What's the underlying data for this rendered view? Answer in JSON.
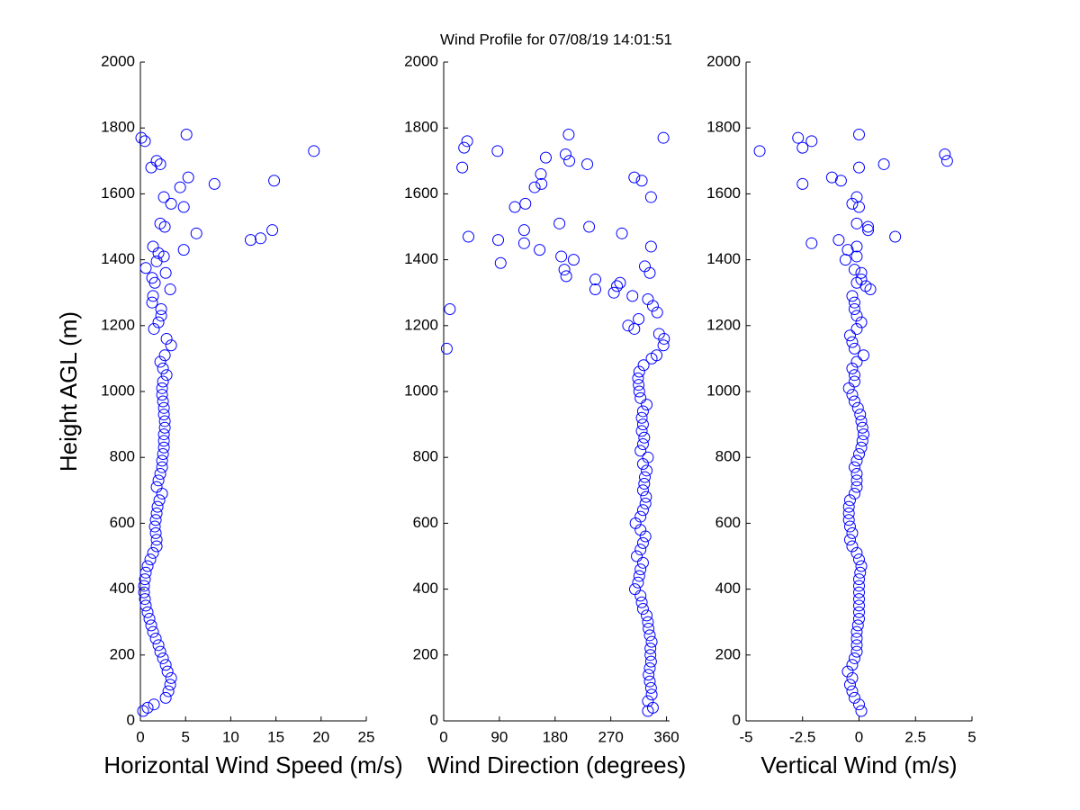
{
  "title": "Wind Profile for  07/08/19 14:01:51",
  "chart_data": [
    {
      "type": "scatter",
      "xlabel": "Horizontal Wind Speed (m/s)",
      "ylabel": "Height AGL (m)",
      "color": "#0000ff",
      "xlim": [
        0,
        25
      ],
      "xticks": [
        0,
        5,
        10,
        15,
        20,
        25
      ],
      "ylim": [
        0,
        2000
      ],
      "yticks": [
        0,
        200,
        400,
        600,
        800,
        1000,
        1200,
        1400,
        1600,
        1800,
        2000
      ],
      "x": [
        0.3,
        0.8,
        1.5,
        2.8,
        3.1,
        3.3,
        3.4,
        3.0,
        2.8,
        2.5,
        2.2,
        2.0,
        1.7,
        1.4,
        1.2,
        1.0,
        0.8,
        0.6,
        0.5,
        0.4,
        0.4,
        0.5,
        0.6,
        0.8,
        1.1,
        1.4,
        1.8,
        1.8,
        1.7,
        1.6,
        1.7,
        1.8,
        1.9,
        2.1,
        2.4,
        1.8,
        2.0,
        2.2,
        2.4,
        2.4,
        2.5,
        2.6,
        2.6,
        2.6,
        2.7,
        2.7,
        2.6,
        2.6,
        2.5,
        2.4,
        2.4,
        2.5,
        2.9,
        2.5,
        2.2,
        2.7,
        3.4,
        2.9,
        1.5,
        2.0,
        2.3,
        2.3,
        1.3,
        1.4,
        3.3,
        1.6,
        1.3,
        2.8,
        0.6,
        1.8,
        2.6,
        2.0,
        4.8,
        1.4,
        12.2,
        13.3,
        6.2,
        14.6,
        2.7,
        2.2,
        4.8,
        3.4,
        2.6,
        4.4,
        8.2,
        14.8,
        5.3,
        1.2,
        2.2,
        1.8,
        19.2,
        0.5,
        0.1,
        5.1
      ],
      "y": [
        30,
        40,
        50,
        70,
        90,
        110,
        130,
        150,
        170,
        190,
        210,
        230,
        250,
        270,
        290,
        310,
        330,
        350,
        370,
        390,
        410,
        430,
        450,
        470,
        490,
        510,
        530,
        550,
        570,
        590,
        610,
        630,
        650,
        670,
        690,
        710,
        730,
        750,
        770,
        790,
        810,
        830,
        850,
        870,
        890,
        910,
        930,
        950,
        970,
        990,
        1010,
        1030,
        1050,
        1070,
        1090,
        1110,
        1140,
        1160,
        1190,
        1210,
        1230,
        1250,
        1270,
        1290,
        1310,
        1330,
        1345,
        1360,
        1375,
        1395,
        1410,
        1420,
        1430,
        1440,
        1460,
        1465,
        1480,
        1490,
        1500,
        1510,
        1560,
        1570,
        1590,
        1620,
        1630,
        1640,
        1650,
        1680,
        1690,
        1700,
        1730,
        1760,
        1770,
        1780
      ]
    },
    {
      "type": "scatter",
      "xlabel": "Wind Direction (degrees)",
      "color": "#0000ff",
      "xlim": [
        0,
        365
      ],
      "xticks": [
        0,
        90,
        180,
        270,
        360
      ],
      "ylim": [
        0,
        2000
      ],
      "yticks": [
        0,
        200,
        400,
        600,
        800,
        1000,
        1200,
        1400,
        1600,
        1800,
        2000
      ],
      "x": [
        330,
        338,
        330,
        336,
        335,
        333,
        331,
        333,
        335,
        334,
        334,
        336,
        333,
        331,
        330,
        328,
        322,
        320,
        318,
        309,
        314,
        316,
        318,
        322,
        312,
        318,
        322,
        326,
        318,
        310,
        318,
        322,
        326,
        327,
        322,
        324,
        325,
        328,
        322,
        330,
        318,
        322,
        324,
        320,
        322,
        320,
        322,
        328,
        318,
        316,
        315,
        314,
        316,
        323,
        336,
        344,
        5,
        355,
        356,
        348,
        308,
        298,
        315,
        345,
        10,
        338,
        330,
        305,
        275,
        245,
        280,
        285,
        245,
        198,
        333,
        195,
        325,
        92,
        210,
        190,
        155,
        335,
        130,
        88,
        40,
        288,
        130,
        235,
        187,
        115,
        132,
        335,
        147,
        158,
        320,
        308,
        157,
        30,
        232,
        203,
        165,
        197,
        87,
        33,
        38,
        355,
        202
      ],
      "y": [
        30,
        40,
        60,
        80,
        100,
        120,
        140,
        160,
        180,
        200,
        220,
        240,
        260,
        280,
        300,
        320,
        340,
        360,
        380,
        400,
        420,
        440,
        460,
        480,
        500,
        520,
        540,
        560,
        580,
        600,
        620,
        640,
        660,
        680,
        700,
        720,
        740,
        760,
        780,
        800,
        820,
        840,
        860,
        880,
        900,
        920,
        940,
        960,
        980,
        1000,
        1020,
        1040,
        1060,
        1080,
        1100,
        1110,
        1130,
        1140,
        1160,
        1175,
        1190,
        1200,
        1220,
        1240,
        1250,
        1260,
        1280,
        1290,
        1300,
        1310,
        1320,
        1330,
        1340,
        1350,
        1360,
        1370,
        1380,
        1390,
        1400,
        1410,
        1430,
        1440,
        1450,
        1460,
        1470,
        1480,
        1490,
        1500,
        1510,
        1560,
        1570,
        1590,
        1620,
        1630,
        1640,
        1650,
        1660,
        1680,
        1690,
        1700,
        1710,
        1720,
        1730,
        1740,
        1760,
        1770,
        1780
      ]
    },
    {
      "type": "scatter",
      "xlabel": "Vertical Wind (m/s)",
      "color": "#0000ff",
      "xlim": [
        -5,
        5
      ],
      "xticks": [
        -5,
        -2.5,
        0,
        2.5,
        5
      ],
      "ylim": [
        0,
        2000
      ],
      "yticks": [
        0,
        200,
        400,
        600,
        800,
        1000,
        1200,
        1400,
        1600,
        1800,
        2000
      ],
      "x": [
        0.1,
        0,
        -0.2,
        -0.3,
        -0.4,
        -0.3,
        -0.5,
        -0.3,
        -0.2,
        -0.1,
        -0.1,
        -0.1,
        -0.1,
        -0.05,
        0,
        0,
        0,
        0,
        0,
        0,
        0,
        0.05,
        0.1,
        0,
        -0.1,
        -0.3,
        -0.4,
        -0.3,
        -0.4,
        -0.45,
        -0.45,
        -0.45,
        -0.4,
        -0.2,
        -0.1,
        -0.1,
        -0.1,
        -0.2,
        -0.1,
        0,
        0.1,
        0.15,
        0.2,
        0.15,
        0.1,
        0.05,
        -0.05,
        -0.2,
        -0.3,
        -0.45,
        -0.2,
        -0.2,
        -0.3,
        -0.1,
        0.2,
        -0.2,
        -0.3,
        -0.4,
        -0.1,
        0.1,
        -0.1,
        -0.2,
        -0.2,
        -0.3,
        0.5,
        0.3,
        -0.1,
        0.1,
        0.1,
        -0.2,
        -0.6,
        -0.1,
        -0.5,
        -0.1,
        -2.1,
        -0.9,
        1.6,
        0.4,
        0.4,
        -0.1,
        0,
        -0.3,
        -0.1,
        -2.5,
        -0.8,
        -1.2,
        0,
        1.1,
        3.9,
        3.8,
        -4.4,
        -2.5,
        -2.1,
        -2.7,
        0
      ],
      "y": [
        30,
        50,
        70,
        90,
        110,
        130,
        150,
        170,
        190,
        210,
        230,
        250,
        270,
        290,
        310,
        330,
        350,
        370,
        390,
        410,
        430,
        450,
        470,
        490,
        510,
        530,
        550,
        570,
        590,
        610,
        630,
        650,
        670,
        690,
        710,
        730,
        750,
        770,
        790,
        810,
        830,
        850,
        870,
        890,
        910,
        930,
        950,
        970,
        990,
        1010,
        1030,
        1050,
        1070,
        1090,
        1110,
        1130,
        1150,
        1170,
        1190,
        1210,
        1230,
        1250,
        1270,
        1290,
        1310,
        1320,
        1330,
        1340,
        1360,
        1370,
        1400,
        1410,
        1430,
        1440,
        1450,
        1460,
        1470,
        1490,
        1500,
        1510,
        1560,
        1570,
        1590,
        1630,
        1640,
        1650,
        1680,
        1690,
        1700,
        1720,
        1730,
        1740,
        1760,
        1770,
        1780
      ]
    }
  ]
}
